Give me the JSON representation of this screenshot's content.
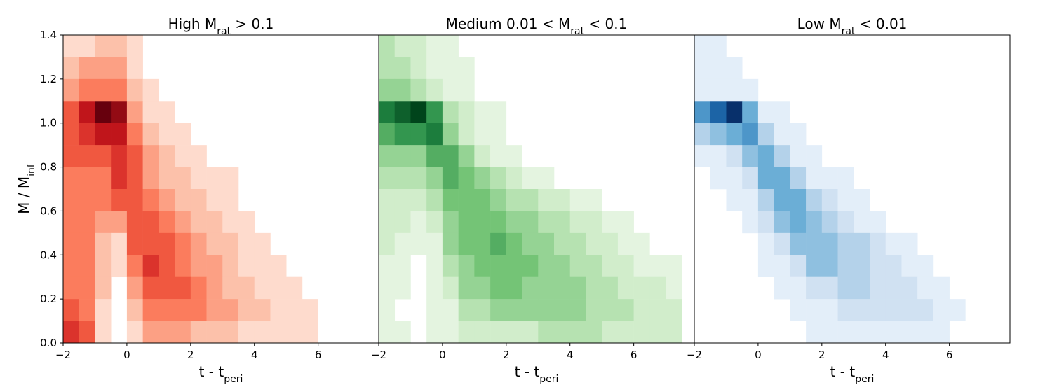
{
  "chart_data": [
    {
      "type": "heatmap",
      "title": {
        "before": "High M",
        "sub": "rat",
        "after": " >  0.1"
      },
      "xlabel": {
        "before": "t - t",
        "sub": "peri"
      },
      "ylabel": {
        "before": "M / M",
        "sub": "inf"
      },
      "xlim": [
        -2,
        7.9
      ],
      "ylim": [
        0,
        1.4
      ],
      "xticks": [
        {
          "value": -2,
          "label": "−2"
        },
        0,
        2,
        4,
        6
      ],
      "yticks": [
        {
          "value": 0,
          "label": "0.0"
        },
        {
          "value": 0.2,
          "label": "0.2"
        },
        {
          "value": 0.4,
          "label": "0.4"
        },
        {
          "value": 0.6,
          "label": "0.6"
        },
        {
          "value": 0.8,
          "label": "0.8"
        },
        {
          "value": 1,
          "label": "1.0"
        },
        {
          "value": 1.2,
          "label": "1.2"
        },
        {
          "value": 1.4,
          "label": "1.4"
        }
      ],
      "colors": [
        "#fff5f0",
        "#fcbba1",
        "#fb6a4a",
        "#cb181d",
        "#67000d"
      ],
      "xbins": [
        -2,
        -1.5,
        -1,
        -0.5,
        0,
        0.5,
        1,
        1.5,
        2,
        2.5,
        3,
        3.5,
        4,
        4.5,
        5,
        5.5,
        6,
        6.5,
        7,
        7.5
      ],
      "ybins": [
        1.4,
        1.3,
        1.2,
        1.1,
        1.0,
        0.9,
        0.8,
        0.7,
        0.6,
        0.5,
        0.4,
        0.3,
        0.2,
        0.1,
        0
      ],
      "z": [
        [
          1,
          1,
          2,
          2,
          1,
          0,
          0,
          0,
          0,
          0,
          0,
          0,
          0,
          0,
          0,
          0,
          0,
          0,
          0
        ],
        [
          2,
          3,
          3,
          3,
          1,
          0,
          0,
          0,
          0,
          0,
          0,
          0,
          0,
          0,
          0,
          0,
          0,
          0,
          0
        ],
        [
          3,
          4,
          4,
          4,
          2,
          1,
          0,
          0,
          0,
          0,
          0,
          0,
          0,
          0,
          0,
          0,
          0,
          0,
          0
        ],
        [
          5,
          7,
          9,
          8,
          3,
          1,
          1,
          0,
          0,
          0,
          0,
          0,
          0,
          0,
          0,
          0,
          0,
          0,
          0
        ],
        [
          5,
          6,
          7,
          7,
          4,
          2,
          1,
          1,
          0,
          0,
          0,
          0,
          0,
          0,
          0,
          0,
          0,
          0,
          0
        ],
        [
          5,
          5,
          5,
          6,
          5,
          3,
          2,
          1,
          1,
          0,
          0,
          0,
          0,
          0,
          0,
          0,
          0,
          0,
          0
        ],
        [
          4,
          4,
          4,
          6,
          5,
          3,
          2,
          2,
          1,
          1,
          1,
          0,
          0,
          0,
          0,
          0,
          0,
          0,
          0
        ],
        [
          4,
          4,
          4,
          5,
          5,
          4,
          3,
          2,
          2,
          1,
          1,
          0,
          0,
          0,
          0,
          0,
          0,
          0,
          0
        ],
        [
          4,
          4,
          3,
          3,
          5,
          5,
          4,
          3,
          2,
          2,
          1,
          1,
          0,
          0,
          0,
          0,
          0,
          0,
          0
        ],
        [
          4,
          4,
          2,
          1,
          5,
          5,
          5,
          4,
          3,
          2,
          2,
          1,
          1,
          0,
          0,
          0,
          0,
          0,
          0
        ],
        [
          4,
          4,
          2,
          1,
          4,
          6,
          5,
          4,
          3,
          3,
          2,
          1,
          1,
          1,
          0,
          0,
          0,
          0,
          0
        ],
        [
          4,
          4,
          2,
          0,
          3,
          5,
          5,
          5,
          4,
          3,
          2,
          2,
          1,
          1,
          1,
          0,
          0,
          0,
          0
        ],
        [
          5,
          4,
          1,
          0,
          2,
          4,
          4,
          4,
          4,
          3,
          3,
          2,
          2,
          1,
          1,
          1,
          0,
          0,
          0
        ],
        [
          6,
          5,
          1,
          0,
          1,
          3,
          3,
          3,
          2,
          2,
          2,
          1,
          1,
          1,
          1,
          1,
          0,
          0,
          0
        ]
      ]
    },
    {
      "type": "heatmap",
      "title": {
        "before": "Medium 0.01 <  M",
        "sub": "rat",
        "after": " <  0.1"
      },
      "xlabel": {
        "before": "t - t",
        "sub": "peri"
      },
      "xlim": [
        -2,
        7.9
      ],
      "ylim": [
        0,
        1.4
      ],
      "xticks": [
        {
          "value": -2,
          "label": "−2"
        },
        0,
        2,
        4,
        6
      ],
      "colors": [
        "#f7fcf5",
        "#c7e9c0",
        "#74c476",
        "#238b45",
        "#00441b"
      ],
      "xbins": [
        -2,
        -1.5,
        -1,
        -0.5,
        0,
        0.5,
        1,
        1.5,
        2,
        2.5,
        3,
        3.5,
        4,
        4.5,
        5,
        5.5,
        6,
        6.5,
        7,
        7.5
      ],
      "ybins": [
        1.4,
        1.3,
        1.2,
        1.1,
        1.0,
        0.9,
        0.8,
        0.7,
        0.6,
        0.5,
        0.4,
        0.3,
        0.2,
        0.1,
        0
      ],
      "z": [
        [
          3,
          2,
          2,
          1,
          1,
          0,
          0,
          0,
          0,
          0,
          0,
          0,
          0,
          0,
          0,
          0,
          0,
          0,
          0
        ],
        [
          3,
          3,
          2,
          1,
          1,
          1,
          0,
          0,
          0,
          0,
          0,
          0,
          0,
          0,
          0,
          0,
          0,
          0,
          0
        ],
        [
          4,
          4,
          3,
          2,
          1,
          1,
          0,
          0,
          0,
          0,
          0,
          0,
          0,
          0,
          0,
          0,
          0,
          0,
          0
        ],
        [
          8,
          9,
          10,
          7,
          3,
          2,
          1,
          1,
          0,
          0,
          0,
          0,
          0,
          0,
          0,
          0,
          0,
          0,
          0
        ],
        [
          6,
          7,
          7,
          8,
          4,
          2,
          1,
          1,
          0,
          0,
          0,
          0,
          0,
          0,
          0,
          0,
          0,
          0,
          0
        ],
        [
          4,
          4,
          4,
          6,
          6,
          4,
          2,
          1,
          1,
          0,
          0,
          0,
          0,
          0,
          0,
          0,
          0,
          0,
          0
        ],
        [
          3,
          3,
          3,
          4,
          6,
          5,
          4,
          3,
          2,
          1,
          1,
          0,
          0,
          0,
          0,
          0,
          0,
          0,
          0
        ],
        [
          2,
          2,
          2,
          3,
          5,
          5,
          5,
          4,
          3,
          3,
          2,
          2,
          1,
          1,
          0,
          0,
          0,
          0,
          0
        ],
        [
          2,
          2,
          1,
          2,
          4,
          5,
          5,
          5,
          4,
          4,
          3,
          3,
          2,
          2,
          1,
          1,
          0,
          0,
          0
        ],
        [
          2,
          1,
          1,
          1,
          4,
          5,
          5,
          6,
          5,
          4,
          4,
          3,
          3,
          2,
          2,
          1,
          1,
          0,
          0
        ],
        [
          1,
          1,
          0,
          1,
          3,
          4,
          5,
          5,
          5,
          5,
          4,
          4,
          3,
          3,
          2,
          2,
          1,
          1,
          1
        ],
        [
          1,
          1,
          0,
          1,
          2,
          4,
          4,
          5,
          5,
          4,
          4,
          4,
          4,
          3,
          3,
          2,
          2,
          2,
          1
        ],
        [
          1,
          0,
          0,
          1,
          1,
          3,
          3,
          4,
          4,
          4,
          4,
          4,
          4,
          3,
          3,
          3,
          2,
          2,
          2
        ],
        [
          1,
          1,
          0,
          1,
          1,
          2,
          2,
          2,
          2,
          2,
          3,
          3,
          3,
          3,
          2,
          2,
          2,
          2,
          2
        ]
      ]
    },
    {
      "type": "heatmap",
      "title": {
        "before": "Low M",
        "sub": "rat",
        "after": " <  0.01"
      },
      "xlabel": {
        "before": "t - t",
        "sub": "peri"
      },
      "xlim": [
        -2,
        7.9
      ],
      "ylim": [
        0,
        1.4
      ],
      "xticks": [
        {
          "value": -2,
          "label": "−2"
        },
        0,
        2,
        4,
        6
      ],
      "colors": [
        "#f7fbff",
        "#c6dbef",
        "#6baed6",
        "#2171b5",
        "#08306b"
      ],
      "xbins": [
        -2,
        -1.5,
        -1,
        -0.5,
        0,
        0.5,
        1,
        1.5,
        2,
        2.5,
        3,
        3.5,
        4,
        4.5,
        5,
        5.5,
        6,
        6.5,
        7,
        7.5
      ],
      "ybins": [
        1.4,
        1.3,
        1.2,
        1.1,
        1.0,
        0.9,
        0.8,
        0.7,
        0.6,
        0.5,
        0.4,
        0.3,
        0.2,
        0.1,
        0
      ],
      "z": [
        [
          1,
          1,
          0,
          0,
          0,
          0,
          0,
          0,
          0,
          0,
          0,
          0,
          0,
          0,
          0,
          0,
          0,
          0,
          0
        ],
        [
          1,
          1,
          1,
          0,
          0,
          0,
          0,
          0,
          0,
          0,
          0,
          0,
          0,
          0,
          0,
          0,
          0,
          0,
          0
        ],
        [
          1,
          1,
          1,
          1,
          0,
          0,
          0,
          0,
          0,
          0,
          0,
          0,
          0,
          0,
          0,
          0,
          0,
          0,
          0
        ],
        [
          6,
          8,
          10,
          5,
          1,
          1,
          0,
          0,
          0,
          0,
          0,
          0,
          0,
          0,
          0,
          0,
          0,
          0,
          0
        ],
        [
          3,
          4,
          5,
          6,
          3,
          1,
          1,
          0,
          0,
          0,
          0,
          0,
          0,
          0,
          0,
          0,
          0,
          0,
          0
        ],
        [
          1,
          1,
          2,
          4,
          5,
          3,
          1,
          1,
          0,
          0,
          0,
          0,
          0,
          0,
          0,
          0,
          0,
          0,
          0
        ],
        [
          0,
          1,
          1,
          2,
          5,
          5,
          3,
          1,
          1,
          1,
          0,
          0,
          0,
          0,
          0,
          0,
          0,
          0,
          0
        ],
        [
          0,
          0,
          1,
          1,
          3,
          5,
          5,
          3,
          2,
          1,
          1,
          0,
          0,
          0,
          0,
          0,
          0,
          0,
          0
        ],
        [
          0,
          0,
          0,
          1,
          2,
          4,
          5,
          4,
          3,
          2,
          1,
          1,
          0,
          0,
          0,
          0,
          0,
          0,
          0
        ],
        [
          0,
          0,
          0,
          0,
          1,
          2,
          4,
          4,
          4,
          3,
          3,
          2,
          1,
          1,
          0,
          0,
          0,
          0,
          0
        ],
        [
          0,
          0,
          0,
          0,
          1,
          1,
          2,
          4,
          4,
          3,
          3,
          2,
          2,
          1,
          1,
          0,
          0,
          0,
          0
        ],
        [
          0,
          0,
          0,
          0,
          0,
          1,
          1,
          2,
          2,
          3,
          3,
          2,
          2,
          2,
          1,
          1,
          0,
          0,
          0
        ],
        [
          0,
          0,
          0,
          0,
          0,
          0,
          1,
          1,
          1,
          2,
          2,
          2,
          2,
          2,
          2,
          1,
          1,
          0,
          0
        ],
        [
          0,
          0,
          0,
          0,
          0,
          0,
          0,
          1,
          1,
          1,
          1,
          1,
          1,
          1,
          1,
          1,
          0,
          0,
          0
        ]
      ]
    }
  ]
}
